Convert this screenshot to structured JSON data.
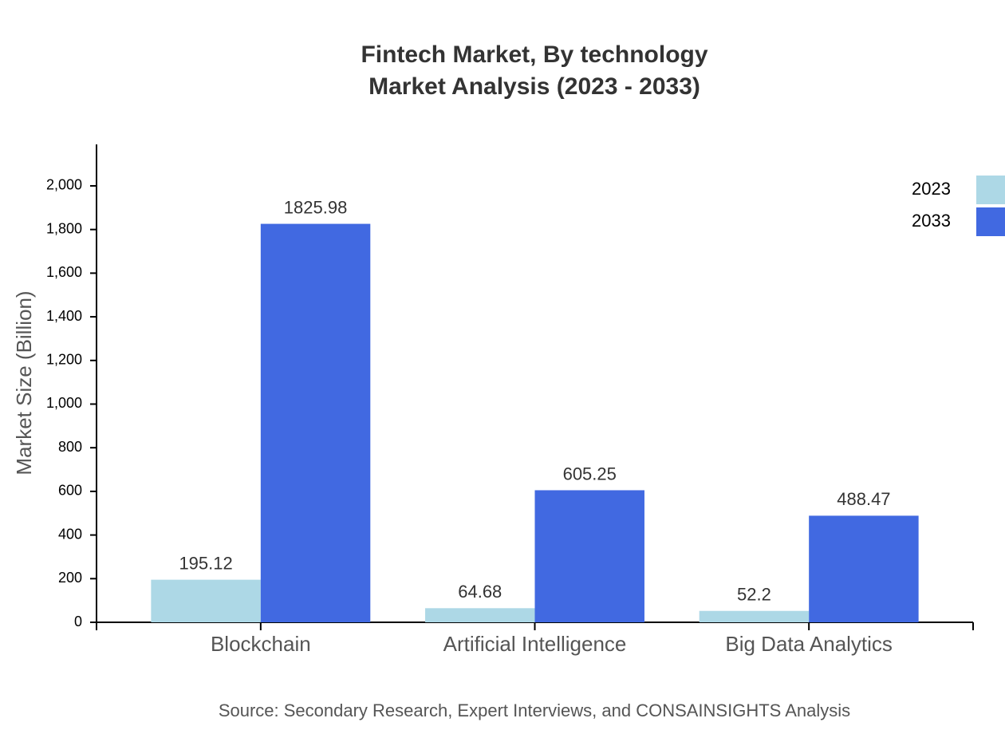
{
  "chart_data": {
    "type": "bar",
    "title": "Fintech Market, By technology",
    "subtitle": "Market Analysis (2023 - 2033)",
    "y_label": "Market Size (Billion)",
    "source": "Source: Secondary Research, Expert Interviews, and CONSAINSIGHTS Analysis",
    "categories": [
      "Blockchain",
      "Artificial Intelligence",
      "Big Data Analytics"
    ],
    "series": [
      {
        "name": "2023",
        "color": "#add8e6",
        "values": [
          195.12,
          64.68,
          52.2
        ]
      },
      {
        "name": "2033",
        "color": "#4169e1",
        "values": [
          1825.98,
          605.25,
          488.47
        ]
      }
    ],
    "ylim": [
      0,
      2190
    ],
    "yticks": [
      0,
      200,
      400,
      600,
      800,
      {
        "value": 1000,
        "label": "1,000"
      },
      {
        "value": 1200,
        "label": "1,200"
      },
      {
        "value": 1400,
        "label": "1,400"
      },
      {
        "value": 1600,
        "label": "1,600"
      },
      {
        "value": 1800,
        "label": "1,800"
      },
      {
        "value": 2000,
        "label": "2,000"
      }
    ],
    "legend": "top-right"
  }
}
